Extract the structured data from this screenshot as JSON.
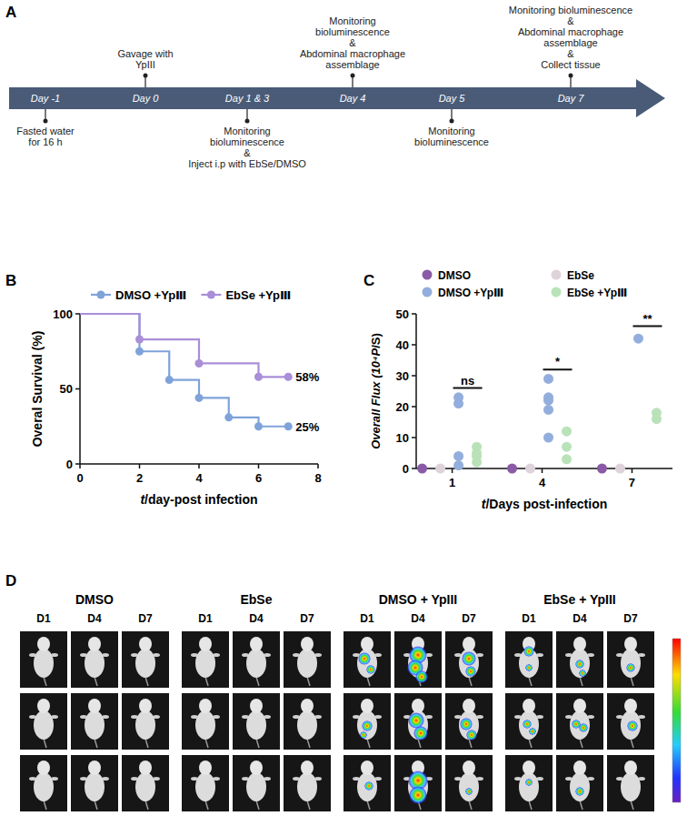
{
  "timeline": {
    "panel_label": "A",
    "events": [
      {
        "day": "Day -1",
        "lines": [
          "Fasted water",
          "for 16 h"
        ]
      },
      {
        "day": "Day 0",
        "lines": [
          "Gavage with",
          "YpIII"
        ]
      },
      {
        "day": "Day 1 & 3",
        "lines": [
          "Monitoring",
          "bioluminescence",
          "&",
          "Inject i.p with EbSe/DMSO"
        ]
      },
      {
        "day": "Day 4",
        "lines": [
          "Monitoring",
          "bioluminescence",
          "&",
          "Abdominal macrophage",
          "assemblage"
        ]
      },
      {
        "day": "Day 5",
        "lines": [
          "Monitoring",
          "bioluminescence"
        ]
      },
      {
        "day": "Day 7",
        "lines": [
          "Monitoring bioluminescence",
          "&",
          "Abdominal macrophage",
          "assemblage",
          "&",
          "Collect tissue"
        ]
      }
    ]
  },
  "chart_data": [
    {
      "panel_label": "B",
      "type": "line",
      "line_style": "steps",
      "marker": "circle",
      "x_label": "t/day-post infection",
      "y_label": "Overal Survival (%)",
      "xlim": [
        0,
        8
      ],
      "xticks": [
        0,
        2,
        4,
        6,
        8
      ],
      "ylim": [
        0,
        100
      ],
      "yticks": [
        0,
        50,
        100
      ],
      "legend": "top",
      "series": [
        {
          "name": "DMSO +YpⅢ",
          "color": "#7fa3d9",
          "x": [
            0,
            2,
            3,
            4,
            5,
            6,
            7
          ],
          "values": [
            100,
            75,
            56,
            44,
            31,
            25,
            25
          ]
        },
        {
          "name": "EbSe +YpⅢ",
          "color": "#a98ed8",
          "x": [
            0,
            2,
            4,
            6,
            7
          ],
          "values": [
            100,
            83,
            67,
            58,
            58
          ]
        }
      ],
      "annotations": [
        {
          "text": "58%",
          "x": 7,
          "y": 58
        },
        {
          "text": "25%",
          "x": 7,
          "y": 25
        }
      ]
    },
    {
      "panel_label": "C",
      "type": "scatter",
      "marker": "circle",
      "x_label": "t/Days post-infection",
      "y_label": "Overall Flux (10⁴P/S)",
      "xlim": [
        -0.2,
        8.35
      ],
      "xticks": [
        1,
        4,
        7
      ],
      "ylim": [
        0,
        50
      ],
      "yticks": [
        0,
        10,
        20,
        30,
        40,
        50
      ],
      "legend": "top",
      "series": [
        {
          "name": "DMSO",
          "color": "#8b5aa6",
          "x": [
            1,
            4,
            7
          ],
          "values": [
            0,
            0,
            0
          ]
        },
        {
          "name": "EbSe",
          "color": "#ddd3d9",
          "x": [
            1,
            4,
            7
          ],
          "values": [
            0,
            0,
            0
          ]
        },
        {
          "name": "DMSO +YpⅢ",
          "color": "#93aedc",
          "x": [
            1,
            1,
            1,
            1,
            4,
            4,
            4,
            4,
            4,
            7
          ],
          "values": [
            23,
            21,
            4,
            1,
            29,
            23,
            22,
            19,
            10,
            42
          ]
        },
        {
          "name": "EbSe +YpⅢ",
          "color": "#b9e2b8",
          "x": [
            1,
            1,
            1,
            1,
            4,
            4,
            4,
            7,
            7
          ],
          "values": [
            7,
            5,
            4,
            2,
            12,
            7,
            3,
            18,
            16
          ]
        }
      ],
      "annotations": [
        {
          "text": "ns",
          "x": 1,
          "y": 26
        },
        {
          "text": "*",
          "x": 4,
          "y": 32
        },
        {
          "text": "**",
          "x": 7,
          "y": 46
        }
      ]
    }
  ],
  "image_grid": {
    "panel_label": "D",
    "groups": [
      "DMSO",
      "EbSe",
      "DMSO + YpIII",
      "EbSe + YpIII"
    ],
    "days": [
      "D1",
      "D4",
      "D7"
    ],
    "rows": 3
  }
}
